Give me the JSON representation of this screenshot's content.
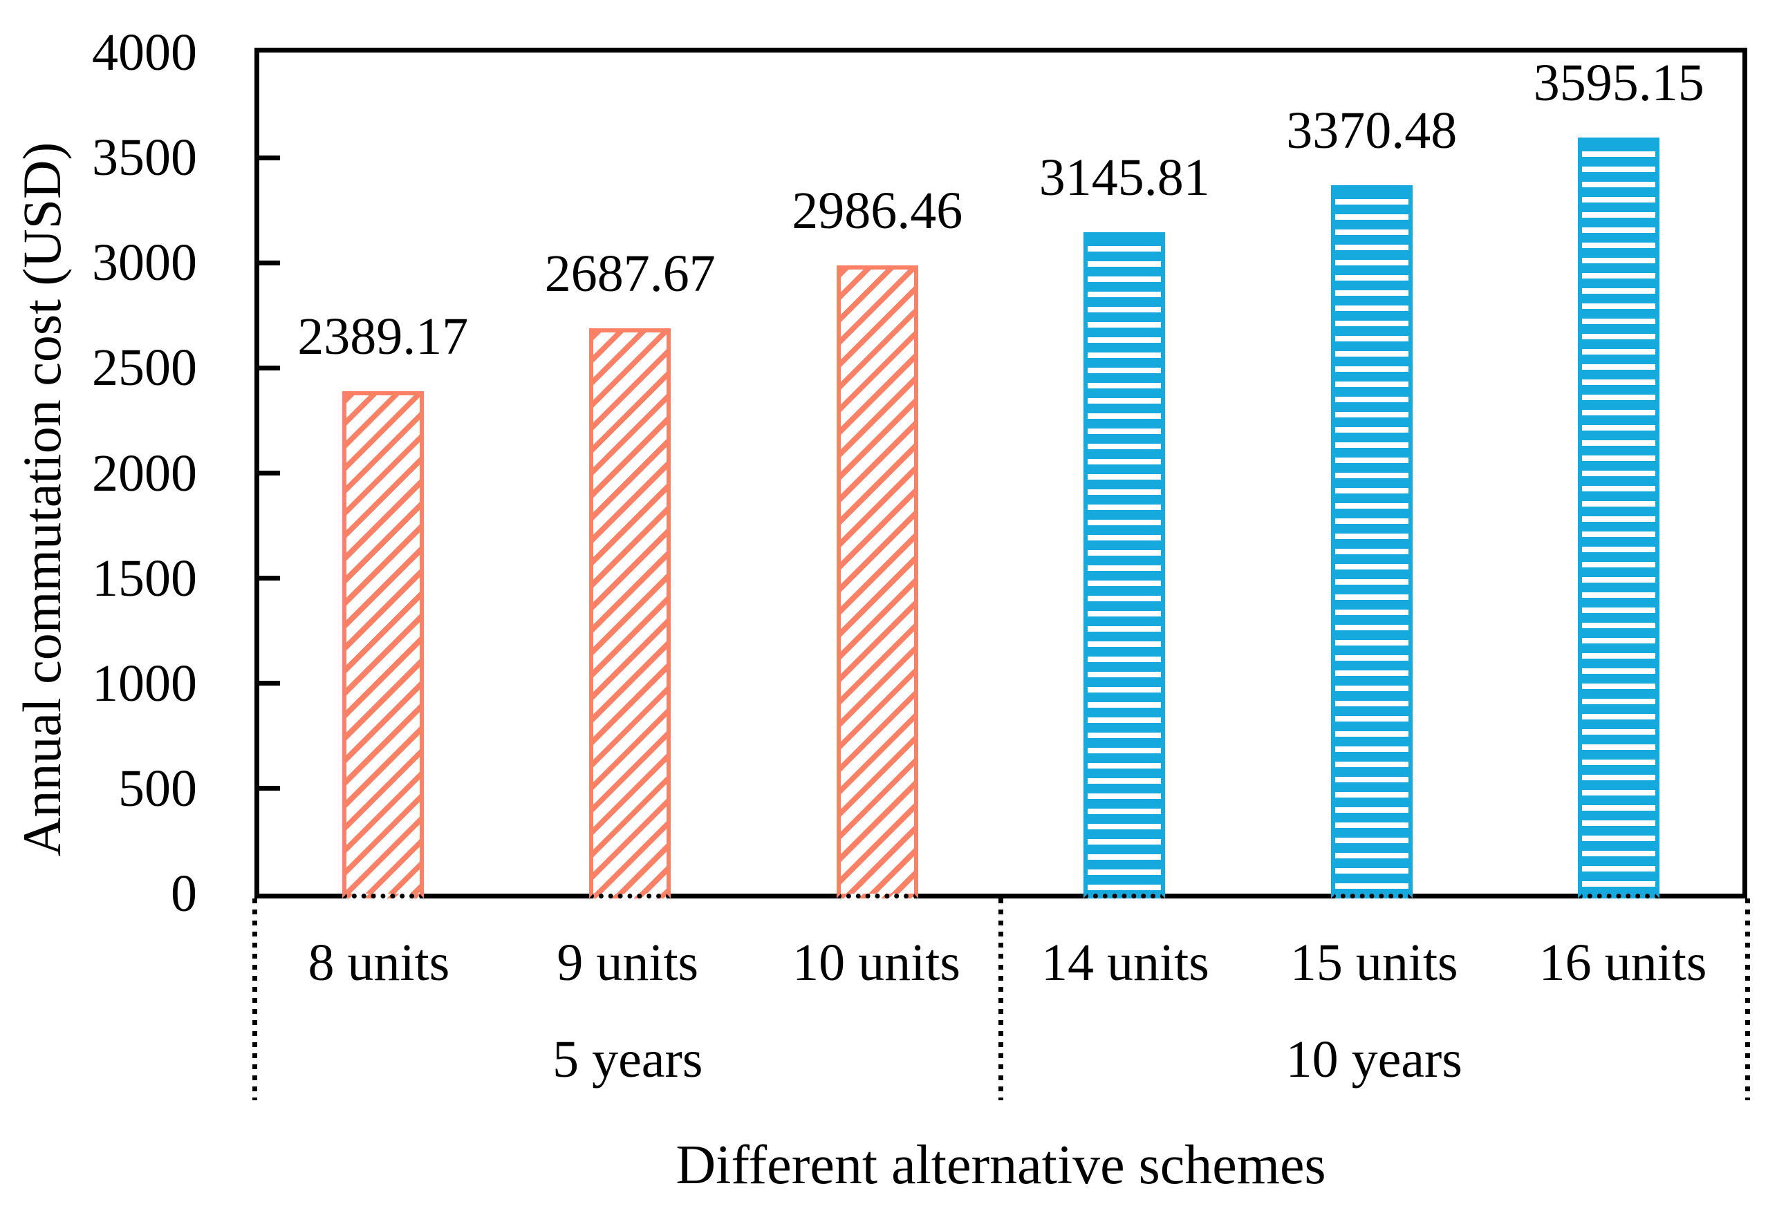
{
  "figure": {
    "background": "#ffffff",
    "axis_color": "#000000",
    "text_color": "#000000"
  },
  "chart_data": {
    "type": "bar",
    "title": "",
    "xlabel": "Different alternative schemes",
    "ylabel": "Annual commutation cost (USD)",
    "categories": [
      "8 units",
      "9 units",
      "10 units",
      "14 units",
      "15 units",
      "16 units"
    ],
    "values": [
      2389.17,
      2687.67,
      2986.46,
      3145.81,
      3370.48,
      3595.15
    ],
    "data_labels": [
      "2389.17",
      "2687.67",
      "2986.46",
      "3145.81",
      "3370.48",
      "3595.15"
    ],
    "groups": [
      {
        "label": "5 years",
        "categories": [
          "8 units",
          "9 units",
          "10 units"
        ],
        "color": "#fb8166",
        "hatch": "diagonal"
      },
      {
        "label": "10 years",
        "categories": [
          "14 units",
          "15 units",
          "16 units"
        ],
        "color": "#16a9dd",
        "hatch": "horizontal"
      }
    ],
    "ylim": [
      0,
      4000
    ],
    "ytick_step": 500,
    "yticks": [
      "0",
      "500",
      "1000",
      "1500",
      "2000",
      "2500",
      "3000",
      "3500",
      "4000"
    ],
    "grid": false,
    "legend": "none"
  }
}
